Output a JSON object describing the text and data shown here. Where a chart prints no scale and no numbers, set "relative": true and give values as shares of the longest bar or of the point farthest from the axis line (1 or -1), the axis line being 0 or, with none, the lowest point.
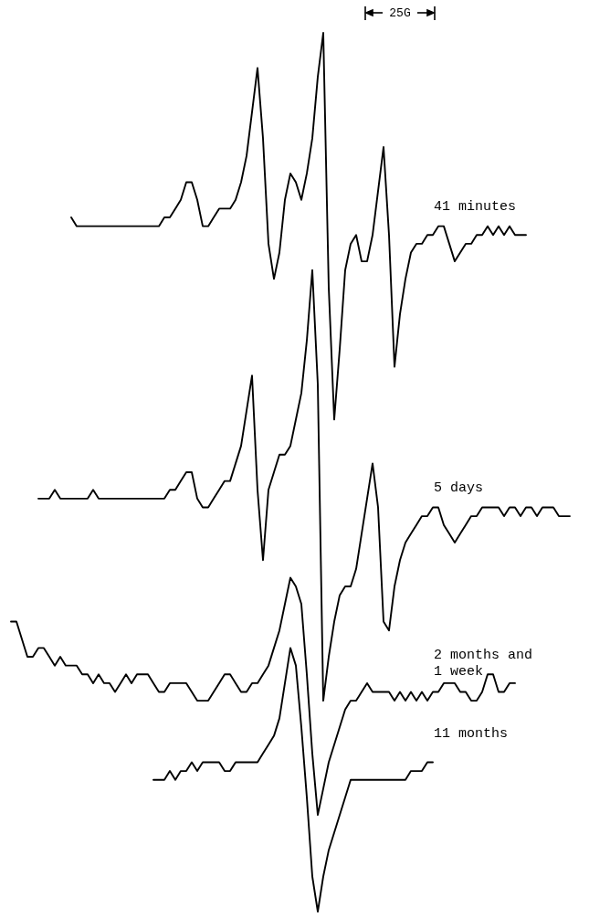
{
  "chart_data": {
    "type": "line",
    "relative": true,
    "annotations": [
      "25G"
    ],
    "categories": [
      null,
      null,
      null,
      null,
      null,
      null,
      null,
      null,
      null,
      null,
      null,
      null,
      null,
      null,
      null,
      null,
      null,
      null,
      null,
      null,
      null,
      null,
      null,
      null,
      null,
      null,
      null,
      null,
      null,
      null,
      null,
      null,
      null,
      null,
      null,
      null,
      null,
      null,
      null,
      null,
      null,
      null,
      null,
      null,
      null,
      null,
      null,
      null,
      null,
      null,
      null,
      null,
      null,
      null,
      null,
      null,
      null,
      null,
      null,
      null,
      null,
      null,
      null,
      null,
      null,
      null,
      null,
      null,
      null,
      null,
      null,
      null,
      null,
      null,
      null,
      null,
      null,
      null,
      null,
      null,
      null,
      null,
      null,
      null,
      null,
      null,
      null,
      null,
      null,
      null,
      null,
      null,
      null,
      null,
      null,
      null,
      null,
      null,
      null,
      null,
      null,
      null,
      null,
      null,
      null
    ],
    "series": [
      {
        "name": "41 minutes",
        "color": "#000000",
        "values": [
          null,
          null,
          null,
          null,
          null,
          null,
          null,
          null,
          null,
          null,
          null,
          null,
          0.79,
          0.78,
          0.78,
          0.78,
          0.78,
          0.78,
          0.78,
          0.78,
          0.78,
          0.78,
          0.78,
          0.78,
          0.78,
          0.78,
          0.78,
          0.78,
          0.78,
          0.79,
          0.79,
          0.8,
          0.81,
          0.83,
          0.83,
          0.81,
          0.78,
          0.78,
          0.79,
          0.8,
          0.8,
          0.8,
          0.81,
          0.83,
          0.86,
          0.91,
          0.96,
          0.88,
          0.76,
          0.72,
          0.75,
          0.81,
          0.84,
          0.83,
          0.81,
          0.84,
          0.88,
          0.95,
          1,
          0.71,
          0.56,
          0.64,
          0.73,
          0.76,
          0.77,
          0.74,
          0.74,
          0.77,
          0.82,
          0.87,
          0.77,
          0.62,
          0.68,
          0.72,
          0.75,
          0.76,
          0.76,
          0.77,
          0.77,
          0.78,
          0.78,
          0.76,
          0.74,
          0.75,
          0.76,
          0.76,
          0.77,
          0.77,
          0.78,
          0.77,
          0.78,
          0.77,
          0.78,
          0.77,
          0.77,
          0.77,
          null,
          null,
          null,
          null,
          null,
          null,
          null,
          null,
          null
        ]
      },
      {
        "name": "5 days",
        "color": "#000000",
        "values": [
          null,
          null,
          null,
          null,
          null,
          null,
          0.47,
          0.47,
          0.47,
          0.48,
          0.47,
          0.47,
          0.47,
          0.47,
          0.47,
          0.47,
          0.48,
          0.47,
          0.47,
          0.47,
          0.47,
          0.47,
          0.47,
          0.47,
          0.47,
          0.47,
          0.47,
          0.47,
          0.47,
          0.47,
          0.48,
          0.48,
          0.49,
          0.5,
          0.5,
          0.47,
          0.46,
          0.46,
          0.47,
          0.48,
          0.49,
          0.49,
          0.51,
          0.53,
          0.57,
          0.61,
          0.48,
          0.4,
          0.48,
          0.5,
          0.52,
          0.52,
          0.53,
          0.56,
          0.59,
          0.65,
          0.73,
          0.6,
          0.24,
          0.29,
          0.33,
          0.36,
          0.37,
          0.37,
          0.39,
          0.43,
          0.47,
          0.51,
          0.46,
          0.33,
          0.32,
          0.37,
          0.4,
          0.42,
          0.43,
          0.44,
          0.45,
          0.45,
          0.46,
          0.46,
          0.44,
          0.43,
          0.42,
          0.43,
          0.44,
          0.45,
          0.45,
          0.46,
          0.46,
          0.46,
          0.46,
          0.45,
          0.46,
          0.46,
          0.45,
          0.46,
          0.46,
          0.45,
          0.46,
          0.46,
          0.46,
          0.45,
          0.45,
          0.45,
          null
        ]
      },
      {
        "name": "2 months and\n1 week",
        "color": "#000000",
        "values": [
          null,
          0.33,
          0.33,
          0.31,
          0.29,
          0.29,
          0.3,
          0.3,
          0.29,
          0.28,
          0.29,
          0.28,
          0.28,
          0.28,
          0.27,
          0.27,
          0.26,
          0.27,
          0.26,
          0.26,
          0.25,
          0.26,
          0.27,
          0.26,
          0.27,
          0.27,
          0.27,
          0.26,
          0.25,
          0.25,
          0.26,
          0.26,
          0.26,
          0.26,
          0.25,
          0.24,
          0.24,
          0.24,
          0.25,
          0.26,
          0.27,
          0.27,
          0.26,
          0.25,
          0.25,
          0.26,
          0.26,
          0.27,
          0.28,
          0.3,
          0.32,
          0.35,
          0.38,
          0.37,
          0.35,
          0.27,
          0.18,
          0.11,
          0.14,
          0.17,
          0.19,
          0.21,
          0.23,
          0.24,
          0.24,
          0.25,
          0.26,
          0.25,
          0.25,
          0.25,
          0.25,
          0.24,
          0.25,
          0.24,
          0.25,
          0.24,
          0.25,
          0.24,
          0.25,
          0.25,
          0.26,
          0.26,
          0.26,
          0.25,
          0.25,
          0.24,
          0.24,
          0.25,
          0.27,
          0.27,
          0.25,
          0.25,
          0.26,
          0.26,
          null,
          null,
          null,
          null,
          null,
          null,
          null,
          null,
          null,
          null,
          null
        ]
      },
      {
        "name": "11 months",
        "color": "#000000",
        "values": [
          null,
          null,
          null,
          null,
          null,
          null,
          null,
          null,
          null,
          null,
          null,
          null,
          null,
          null,
          null,
          null,
          null,
          null,
          null,
          null,
          null,
          null,
          null,
          null,
          null,
          null,
          null,
          0.15,
          0.15,
          0.15,
          0.16,
          0.15,
          0.16,
          0.16,
          0.17,
          0.16,
          0.17,
          0.17,
          0.17,
          0.17,
          0.16,
          0.16,
          0.17,
          0.17,
          0.17,
          0.17,
          0.17,
          0.18,
          0.19,
          0.2,
          0.22,
          0.26,
          0.3,
          0.28,
          0.21,
          0.13,
          0.04,
          0,
          0.04,
          0.07,
          0.09,
          0.11,
          0.13,
          0.15,
          0.15,
          0.15,
          0.15,
          0.15,
          0.15,
          0.15,
          0.15,
          0.15,
          0.15,
          0.15,
          0.16,
          0.16,
          0.16,
          0.17,
          0.17,
          null,
          null,
          null,
          null,
          null,
          null,
          null,
          null,
          null,
          null,
          null,
          null,
          null,
          null,
          null,
          null,
          null,
          null,
          null,
          null,
          null,
          null,
          null,
          null,
          null,
          null
        ]
      }
    ]
  }
}
